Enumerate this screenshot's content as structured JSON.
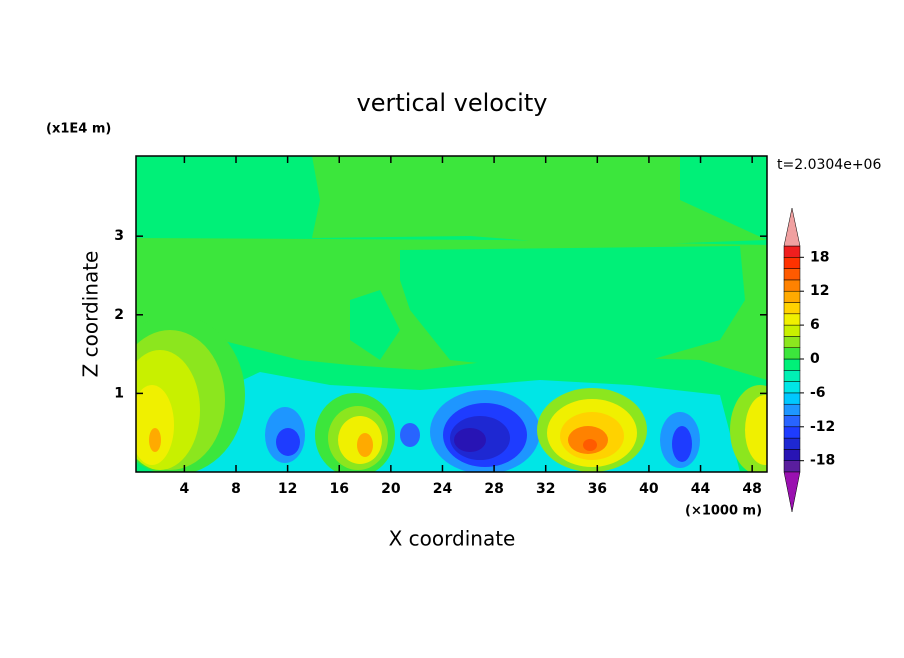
{
  "chart_data": {
    "type": "contour",
    "title": "vertical velocity",
    "xlabel": "X coordinate",
    "ylabel": "Z coordinate",
    "x_unit_label": "(×1000 m)",
    "y_unit_label": "(x1E4 m)",
    "annotation": "t=2.0304e+06",
    "xlim": [
      0.25,
      49.15
    ],
    "ylim": [
      0,
      4.02
    ],
    "xticks": [
      4,
      8,
      12,
      16,
      20,
      24,
      28,
      32,
      36,
      40,
      44,
      48
    ],
    "yticks": [
      1,
      2,
      3
    ],
    "colorbar": {
      "range": [
        -20,
        20
      ],
      "ticks": [
        -18,
        -12,
        -6,
        0,
        6,
        12,
        18
      ],
      "colors": [
        "#5a1e9e",
        "#2814b4",
        "#1e28d2",
        "#1e3cff",
        "#2864ff",
        "#1e96ff",
        "#00c8ff",
        "#00e6e6",
        "#00f0b4",
        "#00f078",
        "#3ce63c",
        "#8ce61e",
        "#c8f000",
        "#f0f000",
        "#ffd200",
        "#ffaa00",
        "#ff8200",
        "#ff5a00",
        "#ff3200",
        "#f01e1e"
      ],
      "over_color": "#f0a0a0",
      "under_color": "#9a10b0"
    }
  }
}
